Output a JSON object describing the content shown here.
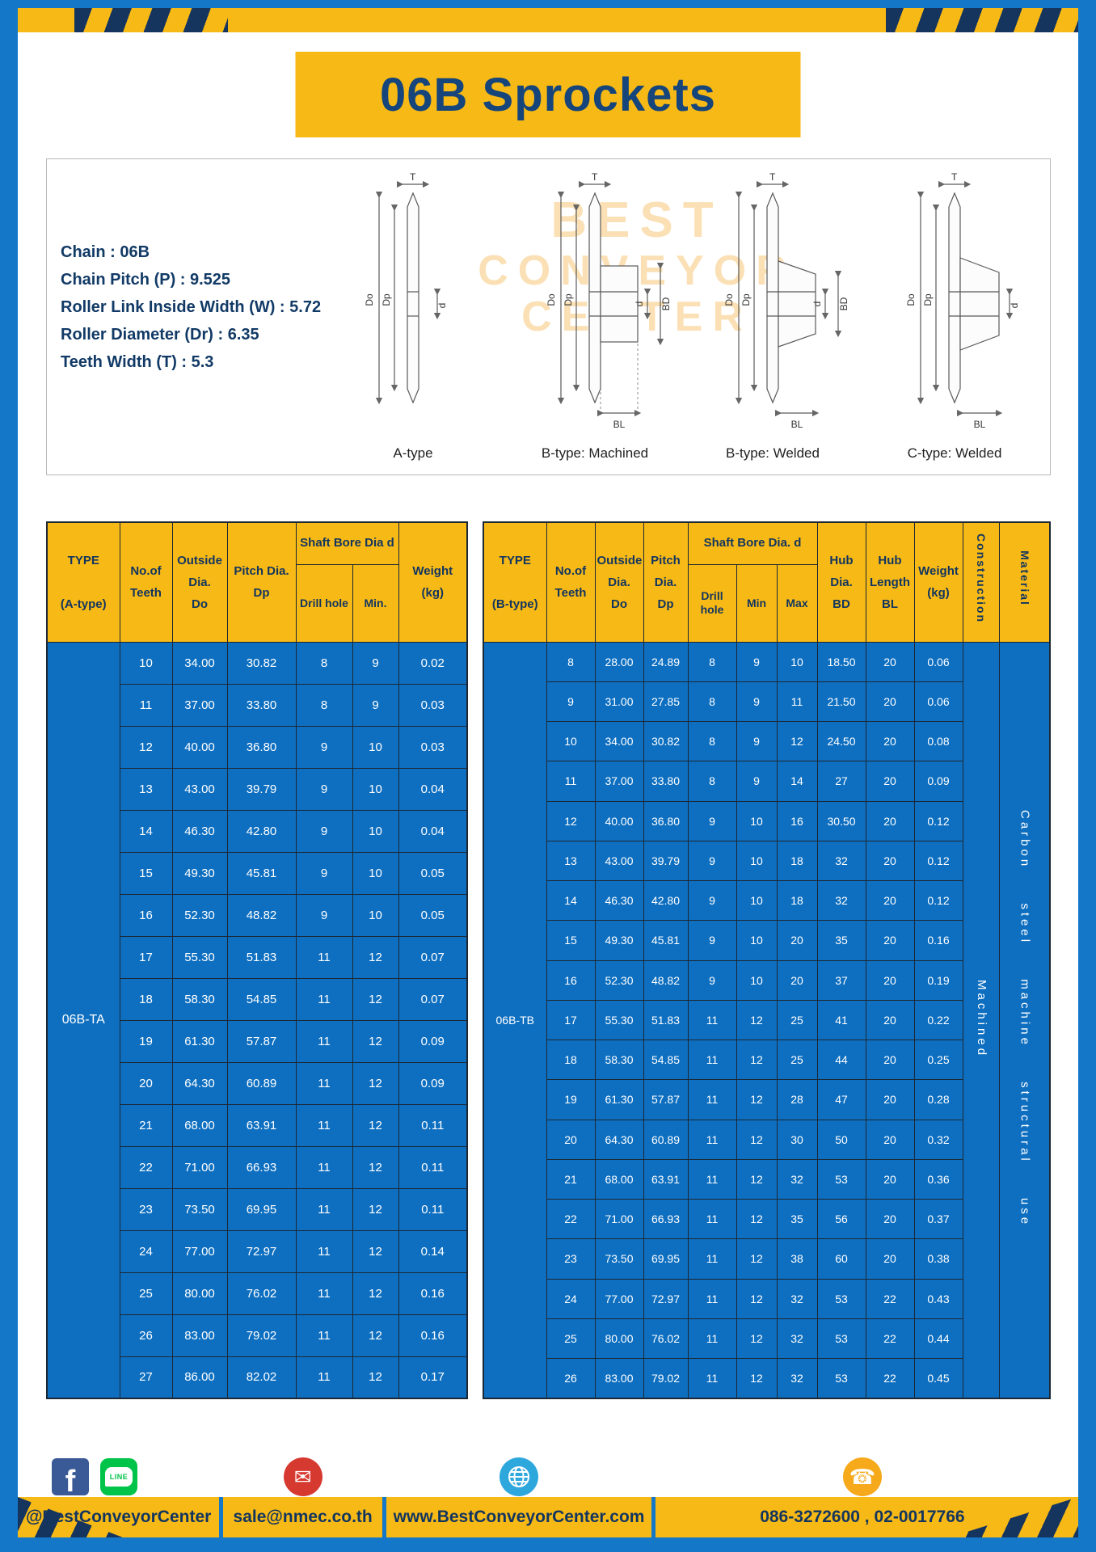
{
  "page": {
    "title": "06B Sprockets"
  },
  "colors": {
    "frame_blue": "#1577C8",
    "accent_yellow": "#F7B916",
    "navy": "#12355F",
    "table_body_blue": "#0E6FC0",
    "table_border": "#1C2733",
    "watermark_orange": "#F2A41E"
  },
  "specs": {
    "lines": [
      "Chain : 06B",
      "Chain Pitch (P) : 9.525",
      "Roller Link Inside Width (W) : 5.72",
      "Roller Diameter (Dr) : 6.35",
      "Teeth Width (T) : 5.3"
    ],
    "diagram_labels": [
      "A-type",
      "B-type: Machined",
      "B-type: Welded",
      "C-type: Welded"
    ],
    "dims": {
      "t": "T",
      "do": "Do",
      "dp": "Dp",
      "d": "d",
      "bd": "BD",
      "bl": "BL"
    },
    "watermark_lines": [
      "BEST",
      "CONVEYOR",
      "CENTER"
    ]
  },
  "table_a": {
    "headers": {
      "type": "TYPE\n\n(A-type)",
      "teeth": "No.of\nTeeth",
      "outside": "Outside\nDia.\nDo",
      "pitch": "Pitch Dia.\nDp",
      "bore_group": "Shaft Bore Dia d",
      "drill": "Drill hole",
      "min": "Min.",
      "weight": "Weight\n(kg)"
    },
    "type_value": "06B-TA",
    "rows": [
      [
        "10",
        "34.00",
        "30.82",
        "8",
        "9",
        "0.02"
      ],
      [
        "11",
        "37.00",
        "33.80",
        "8",
        "9",
        "0.03"
      ],
      [
        "12",
        "40.00",
        "36.80",
        "9",
        "10",
        "0.03"
      ],
      [
        "13",
        "43.00",
        "39.79",
        "9",
        "10",
        "0.04"
      ],
      [
        "14",
        "46.30",
        "42.80",
        "9",
        "10",
        "0.04"
      ],
      [
        "15",
        "49.30",
        "45.81",
        "9",
        "10",
        "0.05"
      ],
      [
        "16",
        "52.30",
        "48.82",
        "9",
        "10",
        "0.05"
      ],
      [
        "17",
        "55.30",
        "51.83",
        "11",
        "12",
        "0.07"
      ],
      [
        "18",
        "58.30",
        "54.85",
        "11",
        "12",
        "0.07"
      ],
      [
        "19",
        "61.30",
        "57.87",
        "11",
        "12",
        "0.09"
      ],
      [
        "20",
        "64.30",
        "60.89",
        "11",
        "12",
        "0.09"
      ],
      [
        "21",
        "68.00",
        "63.91",
        "11",
        "12",
        "0.11"
      ],
      [
        "22",
        "71.00",
        "66.93",
        "11",
        "12",
        "0.11"
      ],
      [
        "23",
        "73.50",
        "69.95",
        "11",
        "12",
        "0.11"
      ],
      [
        "24",
        "77.00",
        "72.97",
        "11",
        "12",
        "0.14"
      ],
      [
        "25",
        "80.00",
        "76.02",
        "11",
        "12",
        "0.16"
      ],
      [
        "26",
        "83.00",
        "79.02",
        "11",
        "12",
        "0.16"
      ],
      [
        "27",
        "86.00",
        "82.02",
        "11",
        "12",
        "0.17"
      ]
    ]
  },
  "table_b": {
    "headers": {
      "type": "TYPE\n\n(B-type)",
      "teeth": "No.of\nTeeth",
      "outside": "Outside\nDia.\nDo",
      "pitch": "Pitch\nDia.\nDp",
      "bore_group": "Shaft Bore Dia.  d",
      "drill": "Drill hole",
      "min": "Min",
      "max": "Max",
      "hub_dia": "Hub\nDia.\nBD",
      "hub_len": "Hub\nLength\nBL",
      "weight": "Weight\n(kg)",
      "construction": "Construction",
      "material": "Material"
    },
    "type_value": "06B-TB",
    "construction_value": "Machined",
    "material_value": "Carbon steel machine structural use",
    "rows": [
      [
        "8",
        "28.00",
        "24.89",
        "8",
        "9",
        "10",
        "18.50",
        "20",
        "0.06"
      ],
      [
        "9",
        "31.00",
        "27.85",
        "8",
        "9",
        "11",
        "21.50",
        "20",
        "0.06"
      ],
      [
        "10",
        "34.00",
        "30.82",
        "8",
        "9",
        "12",
        "24.50",
        "20",
        "0.08"
      ],
      [
        "11",
        "37.00",
        "33.80",
        "8",
        "9",
        "14",
        "27",
        "20",
        "0.09"
      ],
      [
        "12",
        "40.00",
        "36.80",
        "9",
        "10",
        "16",
        "30.50",
        "20",
        "0.12"
      ],
      [
        "13",
        "43.00",
        "39.79",
        "9",
        "10",
        "18",
        "32",
        "20",
        "0.12"
      ],
      [
        "14",
        "46.30",
        "42.80",
        "9",
        "10",
        "18",
        "32",
        "20",
        "0.12"
      ],
      [
        "15",
        "49.30",
        "45.81",
        "9",
        "10",
        "20",
        "35",
        "20",
        "0.16"
      ],
      [
        "16",
        "52.30",
        "48.82",
        "9",
        "10",
        "20",
        "37",
        "20",
        "0.19"
      ],
      [
        "17",
        "55.30",
        "51.83",
        "11",
        "12",
        "25",
        "41",
        "20",
        "0.22"
      ],
      [
        "18",
        "58.30",
        "54.85",
        "11",
        "12",
        "25",
        "44",
        "20",
        "0.25"
      ],
      [
        "19",
        "61.30",
        "57.87",
        "11",
        "12",
        "28",
        "47",
        "20",
        "0.28"
      ],
      [
        "20",
        "64.30",
        "60.89",
        "11",
        "12",
        "30",
        "50",
        "20",
        "0.32"
      ],
      [
        "21",
        "68.00",
        "63.91",
        "11",
        "12",
        "32",
        "53",
        "20",
        "0.36"
      ],
      [
        "22",
        "71.00",
        "66.93",
        "11",
        "12",
        "35",
        "56",
        "20",
        "0.37"
      ],
      [
        "23",
        "73.50",
        "69.95",
        "11",
        "12",
        "38",
        "60",
        "20",
        "0.38"
      ],
      [
        "24",
        "77.00",
        "72.97",
        "11",
        "12",
        "32",
        "53",
        "22",
        "0.43"
      ],
      [
        "25",
        "80.00",
        "76.02",
        "11",
        "12",
        "32",
        "53",
        "22",
        "0.44"
      ],
      [
        "26",
        "83.00",
        "79.02",
        "11",
        "12",
        "32",
        "53",
        "22",
        "0.45"
      ]
    ]
  },
  "footer": {
    "icons": [
      "facebook-icon",
      "line-icon",
      "email-icon",
      "globe-icon",
      "phone-icon"
    ],
    "sections": [
      {
        "icons": [
          "facebook-icon",
          "line-icon"
        ],
        "text": "@BestConveyorCenter"
      },
      {
        "icons": [
          "email-icon"
        ],
        "text": "sale@nmec.co.th"
      },
      {
        "icons": [
          "globe-icon"
        ],
        "text": "www.BestConveyorCenter.com"
      },
      {
        "icons": [
          "phone-icon"
        ],
        "text": "086-3272600 , 02-0017766"
      }
    ]
  }
}
